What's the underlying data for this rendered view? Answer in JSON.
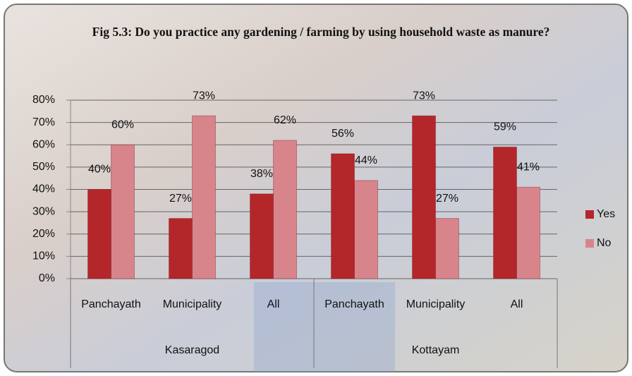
{
  "chart_data": {
    "type": "bar",
    "title": "Fig 5.3: Do you practice any gardening / farming by using household waste as manure?",
    "groups": [
      {
        "name": "Kasaragod",
        "categories": [
          "Panchayath",
          "Municipality",
          "All"
        ]
      },
      {
        "name": "Kottayam",
        "categories": [
          "Panchayath",
          "Municipality",
          "All"
        ]
      }
    ],
    "series": [
      {
        "name": "Yes",
        "color": "#b3262a",
        "values": [
          40,
          27,
          38,
          56,
          73,
          59
        ],
        "value_labels": [
          "40%",
          "27%",
          "38%",
          "56%",
          "73%",
          "59%"
        ]
      },
      {
        "name": "No",
        "color": "#d8848b",
        "values": [
          60,
          73,
          62,
          44,
          27,
          41
        ],
        "value_labels": [
          "60%",
          "73%",
          "62%",
          "44%",
          "27%",
          "41%"
        ]
      }
    ],
    "ylim": [
      0,
      80
    ],
    "yticks": [
      {
        "value": 0,
        "label": "0%"
      },
      {
        "value": 10,
        "label": "10%"
      },
      {
        "value": 20,
        "label": "20%"
      },
      {
        "value": 30,
        "label": "30%"
      },
      {
        "value": 40,
        "label": "40%"
      },
      {
        "value": 50,
        "label": "50%"
      },
      {
        "value": 60,
        "label": "60%"
      },
      {
        "value": 70,
        "label": "70%"
      },
      {
        "value": 80,
        "label": "80%"
      }
    ],
    "grid": true,
    "legend": "right"
  }
}
